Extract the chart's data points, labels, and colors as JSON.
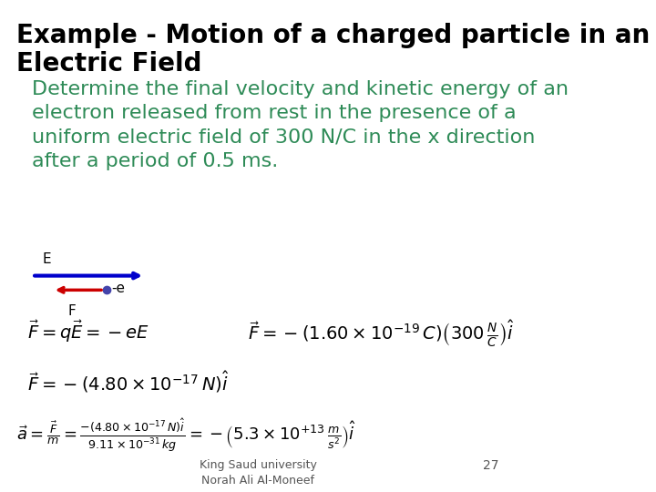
{
  "title_line1": "Example - Motion of a charged particle in an",
  "title_line2": "Electric Field",
  "title_color": "#000000",
  "title_fontsize": 20,
  "body_text": "Determine the final velocity and kinetic energy of an\nelectron released from rest in the presence of a\nuniform electric field of 300 N/C in the x direction\nafter a period of 0.5 ms.",
  "body_color": "#2e8b57",
  "body_fontsize": 16,
  "E_label": "E",
  "F_label": "F",
  "neg_e_label": "-e",
  "arrow_E_color": "#0000cc",
  "arrow_F_color": "#cc0000",
  "dot_color": "#4444aa",
  "eq1": "$\\vec{F} = q\\vec{E} = -eE$",
  "eq2": "$\\vec{F} = -(1.60 \\times 10^{-19}\\,C)\\left(300\\,\\frac{N}{C}\\right)\\hat{i}$",
  "eq3": "$\\vec{F} = -(4.80 \\times 10^{-17}\\,N)\\hat{i}$",
  "eq4": "$\\vec{a} = \\frac{\\vec{F}}{m} = \\frac{-(4.80 \\times 10^{-17}\\,N)\\hat{i}}{9.11 \\times 10^{-31}\\,kg} = -\\left(5.3 \\times 10^{+13}\\,\\frac{m}{s^2}\\right)\\hat{i}$",
  "eq_fontsize": 14,
  "footer_line1": "King Saud university",
  "footer_line2": "Norah Ali Al-Moneef",
  "footer_color": "#555555",
  "footer_fontsize": 9,
  "page_number": "27",
  "bg_color": "#ffffff"
}
